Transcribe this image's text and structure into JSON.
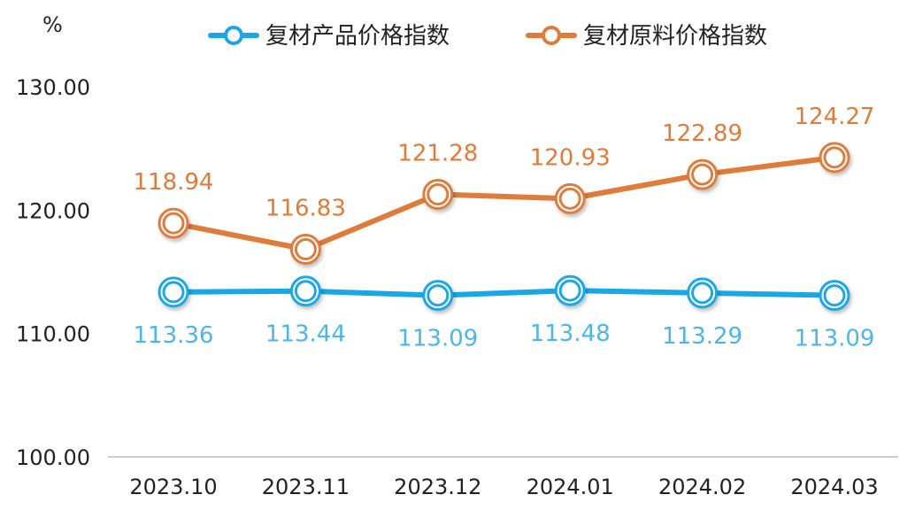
{
  "chart_data": {
    "type": "line",
    "categories": [
      "2023.10",
      "2023.11",
      "2023.12",
      "2024.01",
      "2024.02",
      "2024.03"
    ],
    "series": [
      {
        "name": "复材产品价格指数",
        "values": [
          113.36,
          113.44,
          113.09,
          113.48,
          113.29,
          113.09
        ],
        "color": "#1aa7e6",
        "label_color": "#4bb7e8"
      },
      {
        "name": "复材原料价格指数",
        "values": [
          118.94,
          116.83,
          121.28,
          120.93,
          122.89,
          124.27
        ],
        "color": "#e07b3a",
        "label_color": "#e07b3a"
      }
    ],
    "ylabel": "%",
    "ylim": [
      100,
      130
    ],
    "yticks": [
      "100.00",
      "110.00",
      "120.00",
      "130.00"
    ],
    "grid": false,
    "legend": "top-center"
  }
}
